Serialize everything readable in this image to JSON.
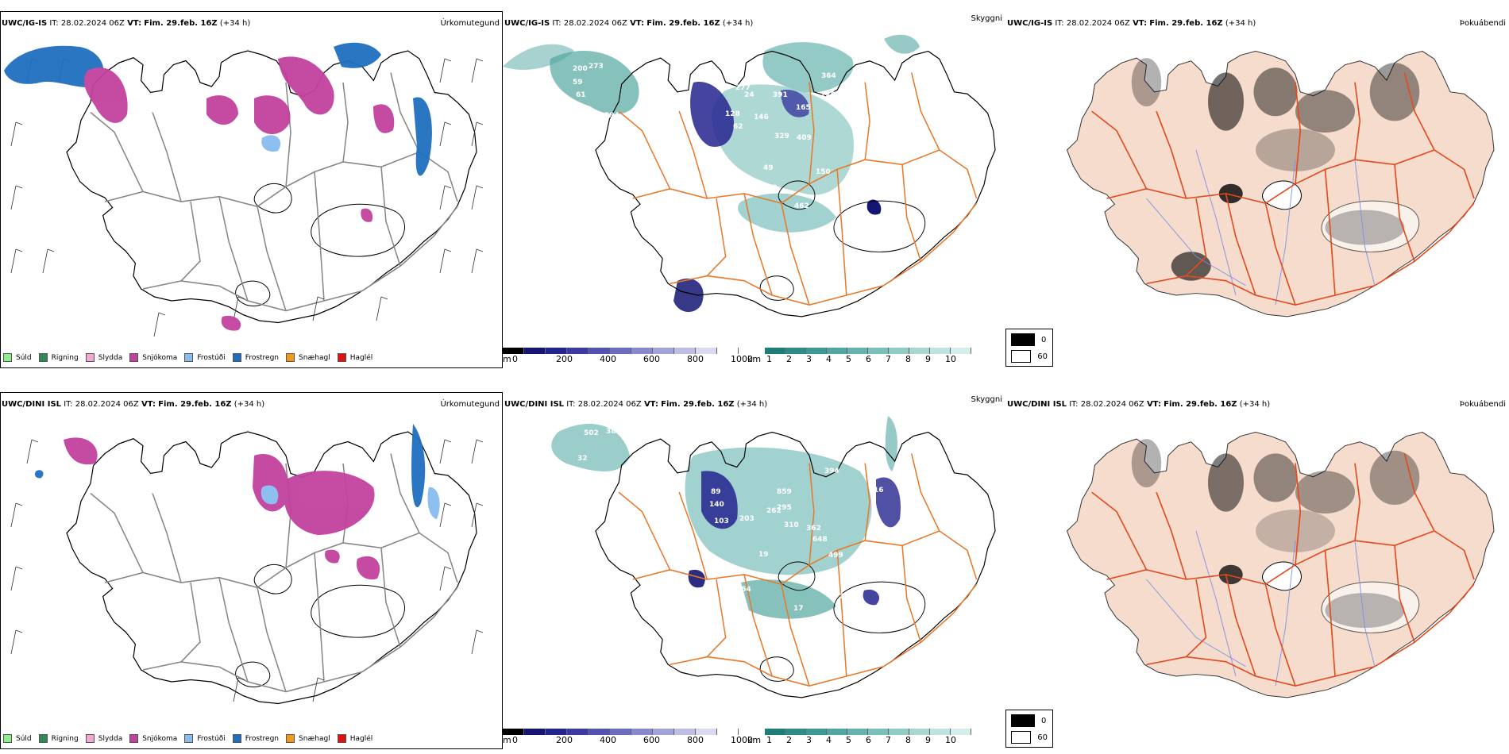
{
  "rows": [
    {
      "model": "UWC/IG-IS",
      "it_label": "IT:",
      "it": "28.02.2024 06Z",
      "vt_label": "VT:",
      "vt": "Fim. 29.feb. 16Z",
      "lead": "(+34 h)"
    },
    {
      "model": "UWC/DINI ISL",
      "it_label": "IT:",
      "it": "28.02.2024 06Z",
      "vt_label": "VT:",
      "vt": "Fim. 29.feb. 16Z",
      "lead": "(+34 h)"
    }
  ],
  "panel_titles": {
    "precip_type": "Úrkomutegund",
    "visibility": "Skyggni",
    "fog": "Þokuábendi"
  },
  "precip_legend": [
    {
      "label": "Súld",
      "color": "#90ee90"
    },
    {
      "label": "Rigning",
      "color": "#2e8b57"
    },
    {
      "label": "Slydda",
      "color": "#f4a6d7"
    },
    {
      "label": "Snjókoma",
      "color": "#c2419e"
    },
    {
      "label": "Frostúði",
      "color": "#87bdf0"
    },
    {
      "label": "Frostregn",
      "color": "#1f6fbf"
    },
    {
      "label": "Snæhagl",
      "color": "#f29a1b"
    },
    {
      "label": "Haglél",
      "color": "#e01010"
    }
  ],
  "visibility_scale": {
    "m_unit": "m",
    "m_ticks": [
      "0",
      "200",
      "400",
      "600",
      "800",
      "1000"
    ],
    "km_unit": "km",
    "km_ticks": [
      "1",
      "2",
      "3",
      "4",
      "5",
      "6",
      "7",
      "8",
      "9",
      "10"
    ],
    "m_colors": [
      "#000000",
      "#151573",
      "#24248f",
      "#3a3aa0",
      "#5252b0",
      "#6d6dbf",
      "#8888cc",
      "#a3a3d8",
      "#bebee4",
      "#d9d9f0",
      "#ffffff"
    ],
    "km_colors": [
      "#1d7d77",
      "#2e8b85",
      "#3f9993",
      "#52a6a0",
      "#66b3ad",
      "#7bbfba",
      "#91cbc6",
      "#a8d7d3",
      "#bfe3e0",
      "#d6eeec"
    ]
  },
  "fog_legend": [
    {
      "label": "0",
      "color": "#000000"
    },
    {
      "label": "60",
      "color": "#ffffff"
    }
  ],
  "visibility_labels_top": [
    "273",
    "200",
    "59",
    "61",
    "394",
    "277",
    "24",
    "391",
    "364",
    "125",
    "128",
    "165",
    "62",
    "146",
    "329",
    "409",
    "49",
    "150",
    "462",
    "119",
    "92",
    "91",
    "97"
  ],
  "visibility_labels_bottom": [
    "502",
    "38",
    "32",
    "394",
    "859",
    "89",
    "140",
    "103",
    "203",
    "262",
    "295",
    "310",
    "362",
    "648",
    "499",
    "19",
    "164",
    "17",
    "2",
    "112",
    "16"
  ],
  "colors": {
    "road": "#e8782a",
    "fog_land": "#f5dccd",
    "fog_road": "#e24a1e",
    "river": "#7a8fe6",
    "coast": "#000000"
  }
}
